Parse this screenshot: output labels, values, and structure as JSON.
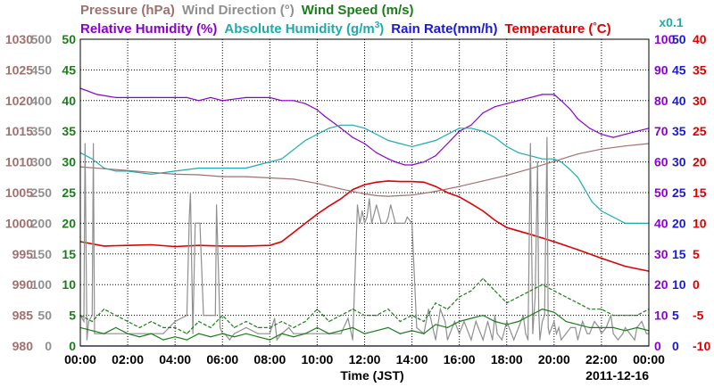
{
  "chart_data": {
    "type": "line",
    "title_lines": [
      [
        {
          "key": "pressure",
          "text": "Pressure (hPa)",
          "color": "#a0706f"
        },
        {
          "key": "wind_dir",
          "text": "Wind Direction (°)",
          "color": "#8f8f8f"
        },
        {
          "key": "wind_speed",
          "text": "Wind Speed (m/s)",
          "color": "#1a7d1a"
        }
      ],
      [
        {
          "key": "rh",
          "text": "Relative Humidity (%)",
          "color": "#8a00d4"
        },
        {
          "key": "ah_pre",
          "text": "Absolute Humidity (g/m",
          "color": "#1aadad"
        },
        {
          "key": "ah_sup",
          "text": "3",
          "color": "#1aadad"
        },
        {
          "key": "ah_post",
          "text": ")",
          "color": "#1aadad"
        },
        {
          "key": "rain",
          "text": "Rain Rate(mm/h)",
          "color": "#1a1ad4"
        },
        {
          "key": "temp_pre",
          "text": "Temperature (",
          "color": "#e00000"
        },
        {
          "key": "temp_deg",
          "text": "°",
          "color": "#e00000"
        },
        {
          "key": "temp_post",
          "text": "C)",
          "color": "#e00000"
        }
      ]
    ],
    "multiplier_label": {
      "text": "x0.1",
      "color": "#1aadad"
    },
    "xlabel": "Time (JST)",
    "date_label": "2011-12-16",
    "x_ticks": [
      "00:00",
      "02:00",
      "04:00",
      "06:00",
      "08:00",
      "10:00",
      "12:00",
      "14:00",
      "16:00",
      "18:00",
      "20:00",
      "22:00",
      "00:00"
    ],
    "xlim_hours": [
      0,
      24
    ],
    "axes": {
      "pressure": {
        "color": "#a0706f",
        "range": [
          980,
          1030
        ],
        "ticks": [
          "1030",
          "1025",
          "1020",
          "1015",
          "1010",
          "1005",
          "1000",
          "995",
          "990",
          "985",
          "980"
        ]
      },
      "wind_dir": {
        "color": "#8f8f8f",
        "range": [
          0,
          500
        ],
        "ticks": [
          "500",
          "450",
          "400",
          "350",
          "300",
          "250",
          "200",
          "150",
          "100",
          "50",
          "0"
        ]
      },
      "wind_speed": {
        "color": "#1a7d1a",
        "range": [
          0,
          50
        ],
        "ticks": [
          "50",
          "45",
          "40",
          "35",
          "30",
          "25",
          "20",
          "15",
          "10",
          "5",
          "0"
        ]
      },
      "humidity": {
        "color": "#8a00d4",
        "range": [
          0,
          100
        ],
        "ticks": [
          "100",
          "90",
          "80",
          "70",
          "60",
          "50",
          "40",
          "30",
          "20",
          "10",
          "0"
        ]
      },
      "rain": {
        "color": "#1a1ad4",
        "range": [
          0,
          50
        ],
        "ticks": [
          "50",
          "45",
          "40",
          "35",
          "30",
          "25",
          "20",
          "15",
          "10",
          "5",
          "0"
        ]
      },
      "temperature": {
        "color": "#e00000",
        "range": [
          -10,
          40
        ],
        "ticks": [
          "40",
          "35",
          "30",
          "25",
          "20",
          "15",
          "10",
          "5",
          "0",
          "-5",
          "-10"
        ]
      }
    },
    "series": [
      {
        "key": "relative_humidity",
        "axis": "humidity",
        "color": "#8a00d4",
        "x": [
          0,
          0.7,
          1.5,
          3,
          4,
          4.5,
          5,
          5.5,
          6,
          7,
          8,
          8.5,
          9,
          9.5,
          10,
          10.3,
          11,
          11.5,
          12,
          12.5,
          13,
          13.3,
          13.7,
          14,
          14.5,
          15,
          15.5,
          16,
          16.5,
          17,
          17.5,
          18,
          18.5,
          19,
          19.5,
          20,
          20.3,
          20.7,
          21,
          21.5,
          22,
          22.5,
          23,
          23.5,
          24
        ],
        "y": [
          84,
          82,
          81,
          81,
          81,
          81,
          80,
          81,
          80,
          81,
          81,
          80,
          80,
          79,
          77,
          75,
          71,
          68,
          66,
          63,
          61,
          60,
          59,
          59,
          60,
          62,
          66,
          70,
          72,
          76,
          78,
          79,
          80,
          81,
          82,
          82,
          80,
          77,
          74,
          71,
          69,
          68,
          69,
          70,
          71
        ]
      },
      {
        "key": "absolute_humidity",
        "axis": "humidity",
        "color": "#1aadad",
        "scale_note": "x0.1 g/m3",
        "x": [
          0,
          0.5,
          1,
          1.5,
          2,
          3,
          4,
          5,
          6,
          7,
          7.5,
          8,
          8.5,
          9,
          9.5,
          10,
          10.5,
          11,
          11.5,
          12,
          12.5,
          13,
          13.5,
          14,
          14.5,
          15,
          15.5,
          16,
          16.5,
          17,
          17.5,
          18,
          18.5,
          19,
          19.5,
          20,
          20.3,
          20.6,
          21,
          21.3,
          21.6,
          22,
          22.5,
          23,
          23.5,
          24
        ],
        "y": [
          63,
          61,
          58,
          57,
          57,
          56,
          57,
          58,
          58,
          58,
          59,
          60,
          61,
          64,
          67,
          69,
          71,
          72,
          72,
          71,
          69,
          67,
          66,
          65,
          66,
          67,
          69,
          71,
          71,
          70,
          68,
          65,
          63,
          62,
          61,
          61,
          60,
          58,
          55,
          51,
          47,
          44,
          42,
          40,
          40,
          40
        ]
      },
      {
        "key": "temperature",
        "axis": "temperature",
        "color": "#e00000",
        "x": [
          0,
          1,
          2,
          3,
          4,
          5,
          6,
          7,
          8,
          8.5,
          9,
          9.5,
          10,
          10.5,
          11,
          11.5,
          12,
          12.5,
          13,
          13.5,
          14,
          14.5,
          15,
          15.5,
          16,
          16.5,
          17,
          17.5,
          18,
          19,
          20,
          21,
          22,
          23,
          24
        ],
        "y": [
          7.0,
          6.3,
          6.4,
          6.5,
          6.2,
          6.4,
          6.3,
          6.3,
          6.4,
          7,
          8.5,
          10,
          11.5,
          12.8,
          14,
          15.5,
          16.3,
          16.7,
          16.9,
          16.8,
          16.8,
          16.7,
          16,
          15,
          14.3,
          13.2,
          12,
          10.5,
          9.3,
          8.2,
          7,
          5.7,
          4.3,
          3,
          2.2
        ]
      },
      {
        "key": "pressure",
        "axis": "pressure",
        "color": "#a0706f",
        "x": [
          0,
          1,
          2,
          3,
          4,
          5,
          6,
          7,
          8,
          9,
          10,
          11,
          12,
          12.5,
          13,
          13.5,
          14,
          15,
          16,
          17,
          18,
          19,
          20,
          21,
          22,
          23,
          24
        ],
        "y": [
          1009.2,
          1008.9,
          1008.6,
          1008.3,
          1008.0,
          1007.9,
          1007.6,
          1007.6,
          1007.4,
          1007.2,
          1006.5,
          1005.6,
          1004.8,
          1004.5,
          1004.4,
          1004.5,
          1004.6,
          1005.2,
          1006.0,
          1006.9,
          1007.8,
          1008.9,
          1010.1,
          1011.3,
          1012.1,
          1012.6,
          1013.0
        ]
      },
      {
        "key": "wind_direction",
        "axis": "wind_dir",
        "color": "#8f8f8f",
        "x": [
          0,
          0.15,
          0.2,
          0.28,
          0.35,
          0.5,
          0.55,
          0.6,
          1,
          1.5,
          2,
          2.5,
          3,
          3.5,
          4,
          4.5,
          4.6,
          4.65,
          4.75,
          4.85,
          4.95,
          5,
          5.05,
          5.2,
          5.5,
          5.6,
          5.7,
          5.75,
          5.9,
          6,
          6.1,
          6.3,
          6.5,
          7,
          7.5,
          8,
          8.2,
          8.3,
          8.5,
          8.8,
          9,
          9.5,
          10,
          10.5,
          11,
          11.3,
          11.5,
          11.7,
          11.8,
          11.9,
          12,
          12.1,
          12.2,
          12.3,
          12.5,
          12.7,
          12.9,
          13,
          13.1,
          13.3,
          13.5,
          13.7,
          13.8,
          14,
          14.2,
          14.5,
          14.7,
          15,
          15.2,
          15.4,
          15.5,
          15.6,
          15.8,
          16,
          16.2,
          16.4,
          16.5,
          16.7,
          16.8,
          17,
          17.2,
          17.4,
          17.5,
          17.6,
          17.8,
          18,
          18.2,
          18.3,
          18.5,
          18.7,
          18.8,
          18.9,
          19,
          19.1,
          19.2,
          19.3,
          19.35,
          19.4,
          19.5,
          19.6,
          19.7,
          19.75,
          19.8,
          19.9,
          20,
          20.1,
          20.2,
          20.3,
          20.5,
          20.7,
          20.9,
          21,
          21.2,
          21.4,
          21.5,
          21.7,
          21.9,
          22,
          22.2,
          22.4,
          22.5,
          22.7,
          22.9,
          23,
          23.2,
          23.4,
          23.5,
          23.7,
          23.9,
          24
        ],
        "y": [
          50,
          40,
          330,
          10,
          40,
          50,
          330,
          20,
          20,
          20,
          20,
          20,
          20,
          20,
          40,
          50,
          210,
          250,
          20,
          200,
          200,
          200,
          200,
          50,
          50,
          50,
          50,
          230,
          30,
          20,
          20,
          10,
          20,
          30,
          20,
          20,
          45,
          10,
          20,
          30,
          20,
          20,
          20,
          20,
          20,
          45,
          10,
          230,
          200,
          220,
          200,
          210,
          240,
          200,
          230,
          200,
          200,
          210,
          230,
          200,
          200,
          200,
          210,
          200,
          30,
          20,
          60,
          10,
          60,
          40,
          10,
          20,
          40,
          20,
          40,
          20,
          10,
          40,
          30,
          10,
          40,
          10,
          50,
          20,
          10,
          40,
          20,
          10,
          30,
          50,
          20,
          10,
          330,
          20,
          80,
          300,
          60,
          10,
          40,
          50,
          340,
          30,
          20,
          30,
          40,
          20,
          30,
          10,
          20,
          30,
          30,
          10,
          40,
          20,
          20,
          40,
          30,
          20,
          30,
          50,
          20,
          10,
          20,
          30,
          20,
          10,
          30,
          40,
          20,
          20
        ]
      },
      {
        "key": "wind_speed",
        "axis": "wind_speed",
        "color": "#1a7d1a",
        "x": [
          0,
          0.5,
          1,
          1.5,
          2,
          2.5,
          3,
          3.5,
          4,
          4.5,
          5,
          5.5,
          6,
          6.5,
          7,
          7.5,
          8,
          8.5,
          9,
          9.5,
          10,
          10.5,
          11,
          11.5,
          12,
          12.5,
          13,
          13.5,
          14,
          14.5,
          15,
          15.5,
          16,
          16.5,
          17,
          17.5,
          18,
          18.5,
          19,
          19.5,
          20,
          20.5,
          21,
          21.5,
          22,
          22.5,
          23,
          23.5,
          24
        ],
        "y": [
          3,
          2.5,
          2,
          3,
          2,
          1.5,
          2,
          1,
          1.5,
          1,
          2,
          1.5,
          2,
          1.5,
          2,
          1.5,
          1,
          2,
          1.5,
          2,
          3,
          2,
          2.5,
          3,
          2,
          2.5,
          3,
          2,
          2.5,
          2,
          3.5,
          3,
          4,
          4.5,
          5,
          4,
          3.5,
          4,
          5,
          6,
          5.5,
          4,
          3.5,
          3,
          3,
          3,
          2.5,
          3,
          2.5
        ]
      },
      {
        "key": "wind_speed_gust",
        "axis": "wind_speed",
        "color": "#1a7d1a",
        "style": "dashed",
        "x": [
          0,
          0.5,
          1,
          1.5,
          2,
          2.5,
          3,
          3.5,
          4,
          4.5,
          5,
          5.5,
          6,
          6.5,
          7,
          7.5,
          8,
          8.5,
          9,
          9.5,
          10,
          10.5,
          11,
          11.5,
          12,
          12.5,
          13,
          13.5,
          14,
          14.5,
          15,
          15.5,
          16,
          16.5,
          17,
          17.5,
          18,
          18.5,
          19,
          19.5,
          20,
          20.5,
          21,
          21.5,
          22,
          22.5,
          23,
          23.5,
          24
        ],
        "y": [
          5,
          4,
          6,
          5,
          4,
          3,
          4,
          3,
          3,
          2,
          4,
          3,
          5,
          3,
          4,
          3,
          3,
          4,
          3,
          4,
          6,
          4,
          5,
          6,
          5,
          5,
          6,
          4,
          5,
          4,
          7,
          6,
          8,
          9,
          11,
          9,
          7,
          8,
          9,
          10,
          9,
          8,
          7,
          6,
          6,
          5,
          5,
          5,
          6
        ]
      },
      {
        "key": "rain_rate",
        "axis": "rain",
        "color": "#1a1ad4",
        "x": [
          0,
          24
        ],
        "y": [
          0,
          0
        ]
      }
    ]
  }
}
